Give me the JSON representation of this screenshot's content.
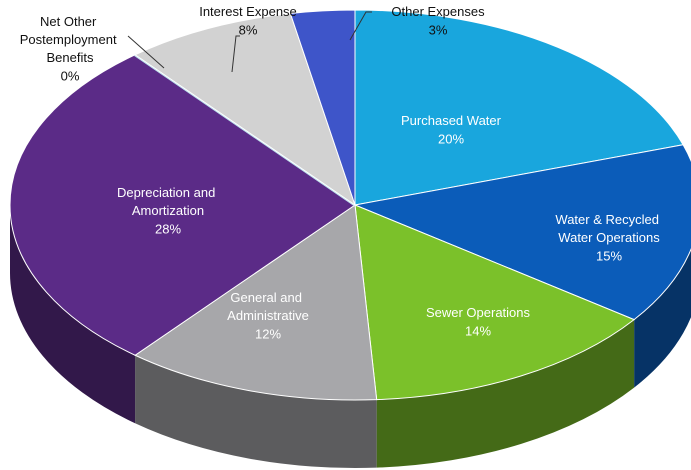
{
  "chart_data": {
    "type": "pie3d",
    "categories": [
      "Purchased Water",
      "Water & Recycled Water Operations",
      "Sewer Operations",
      "General and Administrative",
      "Depreciation and Amortization",
      "Net Other Postemployment Benefits",
      "Interest Expense",
      "Other Expenses"
    ],
    "values": [
      20,
      15,
      14,
      12,
      28,
      0,
      8,
      3
    ],
    "value_labels": [
      "20%",
      "15%",
      "14%",
      "12%",
      "28%",
      "0%",
      "8%",
      "3%"
    ],
    "colors": [
      "#19a6dd",
      "#0b5cb9",
      "#7bc12a",
      "#a7a7aa",
      "#5b2b87",
      "#bfe2ee",
      "#d2d2d2",
      "#3e55c9"
    ]
  }
}
